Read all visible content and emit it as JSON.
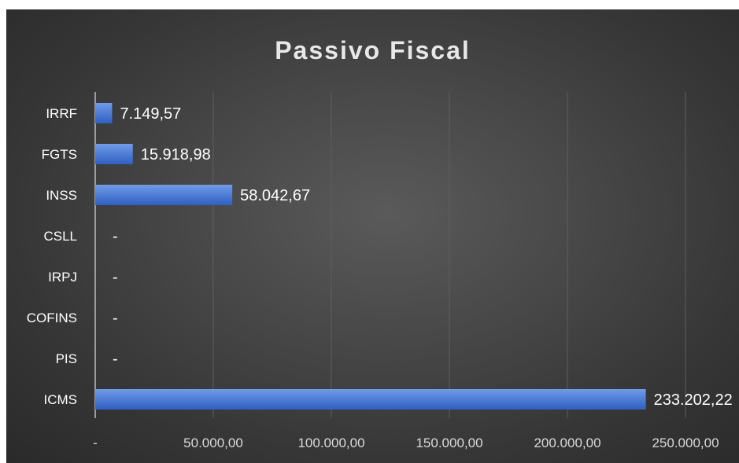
{
  "chart_data": {
    "type": "bar",
    "orientation": "horizontal",
    "title": "Passivo Fiscal",
    "categories": [
      "IRRF",
      "FGTS",
      "INSS",
      "CSLL",
      "IRPJ",
      "COFINS",
      "PIS",
      "ICMS"
    ],
    "values": [
      7149.57,
      15918.98,
      58042.67,
      0,
      0,
      0,
      0,
      233202.22
    ],
    "data_labels": [
      "7.149,57",
      "15.918,98",
      "58.042,67",
      "-",
      "-",
      "-",
      "-",
      "233.202,22"
    ],
    "xlim": [
      0,
      265000
    ],
    "x_ticks": [
      0,
      50000,
      100000,
      150000,
      200000,
      250000
    ],
    "x_tick_labels": [
      "-",
      "50.000,00",
      "100.000,00",
      "150.000,00",
      "200.000,00",
      "250.000,00"
    ],
    "grid": "vertical",
    "legend": "none",
    "colors": {
      "bar_top": "#6f9be8",
      "bar_bottom": "#2f5fc2",
      "background": "#404040",
      "gridline": "#5e5e5e",
      "text": "#ffffff"
    }
  }
}
